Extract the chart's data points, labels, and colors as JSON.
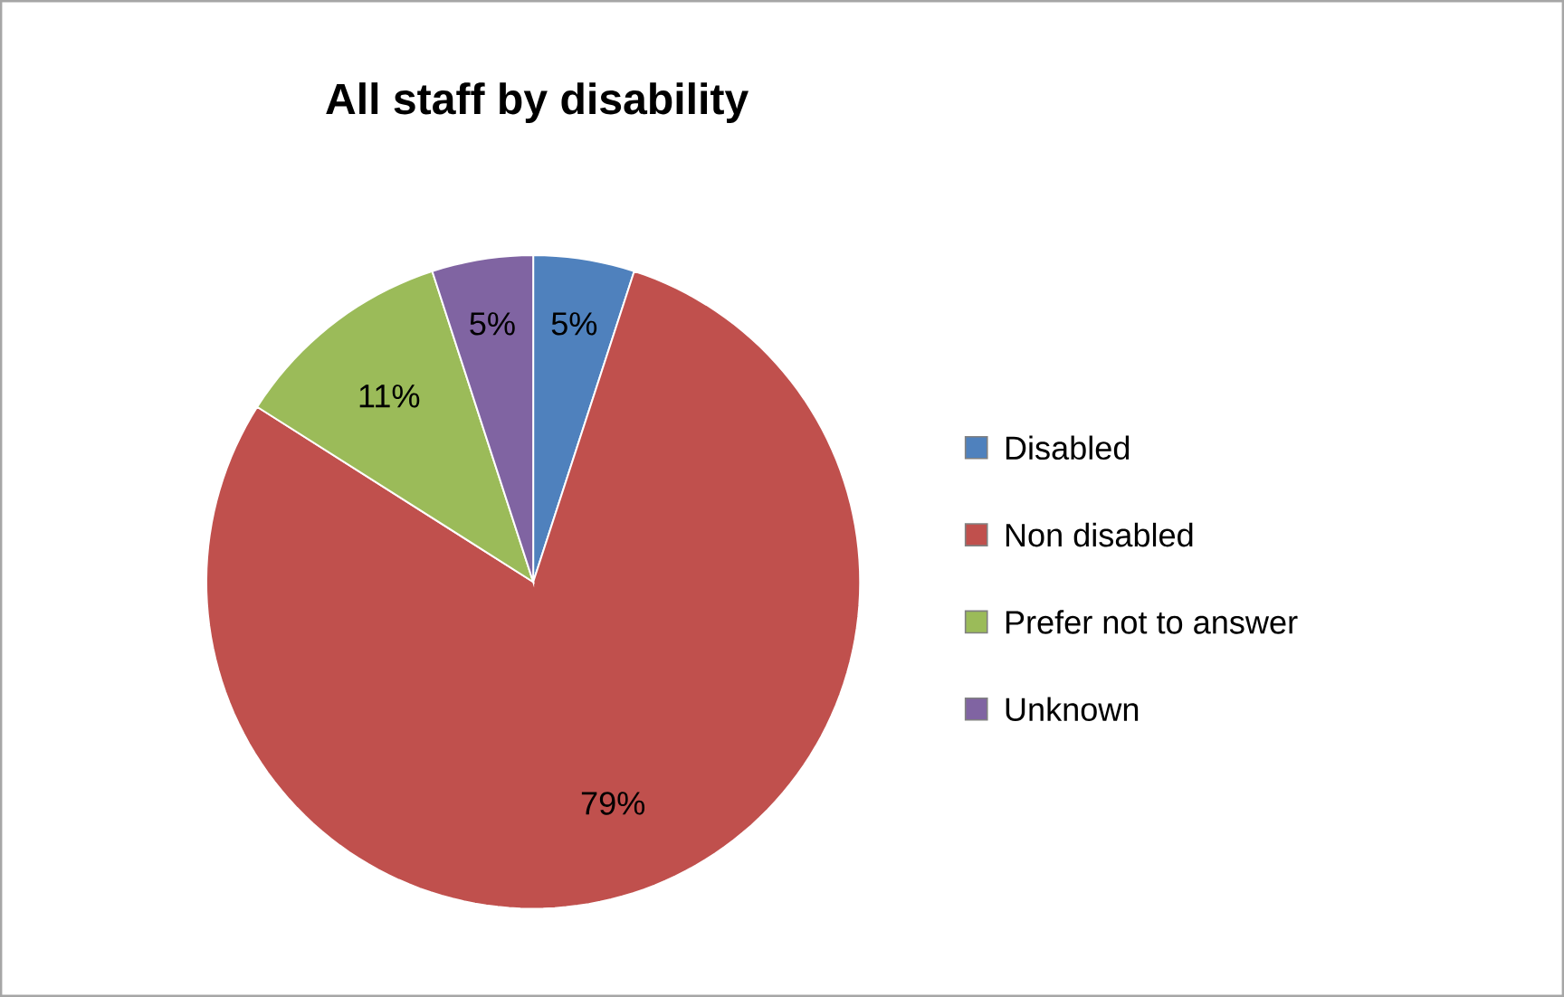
{
  "chart_data": {
    "type": "pie",
    "title": "All staff by disability",
    "categories": [
      "Disabled",
      "Non disabled",
      "Prefer not to answer",
      "Unknown"
    ],
    "values": [
      5,
      79,
      11,
      5
    ],
    "colors": [
      "#4f81bd",
      "#c0504d",
      "#9bbb59",
      "#8064a2"
    ],
    "value_labels": [
      "5%",
      "79%",
      "11%",
      "5%"
    ],
    "legend": "right"
  }
}
